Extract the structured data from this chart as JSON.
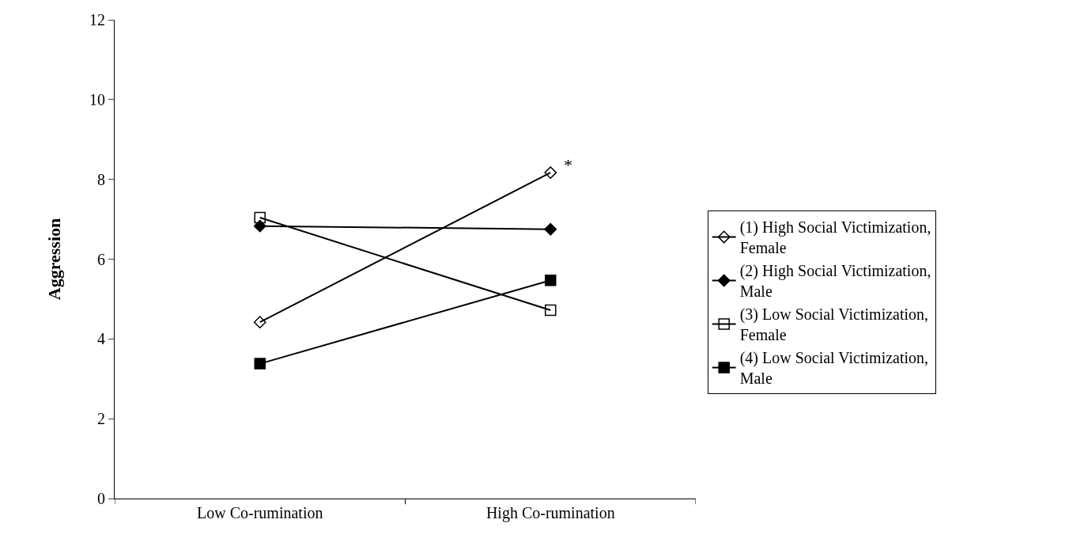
{
  "chart_data": {
    "type": "line",
    "ylabel": "Aggression",
    "categories": [
      "Low Co-rumination",
      "High Co-rumination"
    ],
    "series": [
      {
        "name": "(1) High Social Victimization, Female",
        "color": "#000000",
        "marker": "diamond-open",
        "values": [
          4.42,
          8.17
        ]
      },
      {
        "name": "(2) High Social Victimization, Male",
        "color": "#000000",
        "marker": "diamond",
        "values": [
          6.83,
          6.75
        ]
      },
      {
        "name": "(3) Low Social Victimization, Female",
        "color": "#000000",
        "marker": "square-open",
        "values": [
          7.04,
          4.72
        ]
      },
      {
        "name": "(4) Low Social Victimization, Male",
        "color": "#000000",
        "marker": "square",
        "values": [
          3.38,
          5.47
        ]
      }
    ],
    "ylim": [
      0,
      12
    ],
    "yticks": [
      0,
      2,
      4,
      6,
      8,
      10,
      12
    ],
    "grid": false,
    "legend": "right",
    "line_style": "solid",
    "annotations": [
      {
        "text": "*",
        "x": "High Co-rumination",
        "y": 8.17
      }
    ]
  }
}
